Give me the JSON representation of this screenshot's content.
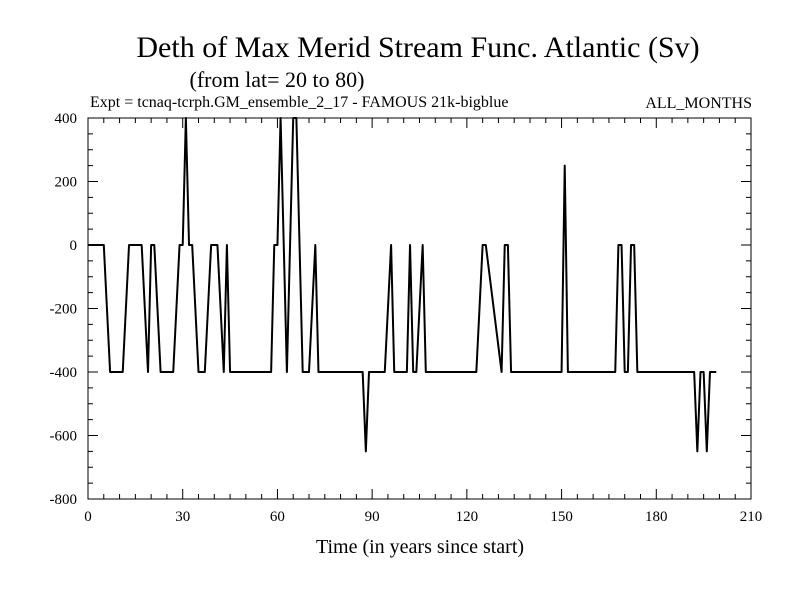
{
  "chart_data": {
    "type": "line",
    "title": "Deth of Max Merid Stream Func. Atlantic (Sv)",
    "subtitle": "(from lat= 20 to 80)",
    "experiment_label": "Expt = tcnaq-tcrph.GM_ensemble_2_17 - FAMOUS 21k-bigblue",
    "months_label": "ALL_MONTHS",
    "xlabel": "Time (in years since start)",
    "ylabel": "",
    "xlim": [
      0,
      210
    ],
    "ylim": [
      -800,
      400
    ],
    "x_ticks": [
      0,
      30,
      60,
      90,
      120,
      150,
      180,
      210
    ],
    "y_ticks": [
      400,
      200,
      0,
      -200,
      -400,
      -600,
      -800
    ],
    "x_minor_step": 5,
    "y_minor_step": 50,
    "grid": false,
    "series": [
      {
        "x": [
          0,
          5,
          6,
          7,
          11,
          12,
          13,
          17,
          18,
          19,
          20,
          21,
          22,
          23,
          27,
          28,
          29,
          30,
          31,
          32,
          33,
          34,
          35,
          36,
          37,
          38,
          39,
          40,
          41,
          42,
          43,
          44,
          45,
          46,
          47,
          58,
          59,
          60,
          61,
          62,
          63,
          64,
          65,
          66,
          67,
          68,
          69,
          70,
          71,
          72,
          73,
          87,
          88,
          89,
          94,
          95,
          96,
          97,
          101,
          102,
          103,
          104,
          105,
          106,
          107,
          123,
          124,
          125,
          126,
          131,
          132,
          133,
          134,
          150,
          151,
          152,
          167,
          168,
          169,
          170,
          171,
          172,
          173,
          174,
          192,
          193,
          194,
          195,
          196,
          197,
          198,
          199
        ],
        "y": [
          0,
          0,
          -200,
          -400,
          -400,
          -200,
          0,
          0,
          -200,
          -400,
          0,
          0,
          -200,
          -400,
          -400,
          -200,
          0,
          0,
          400,
          0,
          0,
          -200,
          -400,
          -400,
          -400,
          -200,
          0,
          0,
          0,
          -200,
          -400,
          0,
          -400,
          -400,
          -400,
          -400,
          0,
          0,
          400,
          0,
          -400,
          0,
          400,
          400,
          0,
          -400,
          -400,
          -400,
          -200,
          0,
          -400,
          -400,
          -650,
          -400,
          -400,
          -200,
          0,
          -400,
          -400,
          0,
          -400,
          -400,
          -200,
          0,
          -400,
          -400,
          -200,
          0,
          0,
          -400,
          0,
          0,
          -400,
          -400,
          250,
          -400,
          -400,
          0,
          0,
          -400,
          -400,
          0,
          0,
          -400,
          -400,
          -650,
          -400,
          -400,
          -650,
          -400,
          -400,
          -400
        ]
      }
    ]
  }
}
